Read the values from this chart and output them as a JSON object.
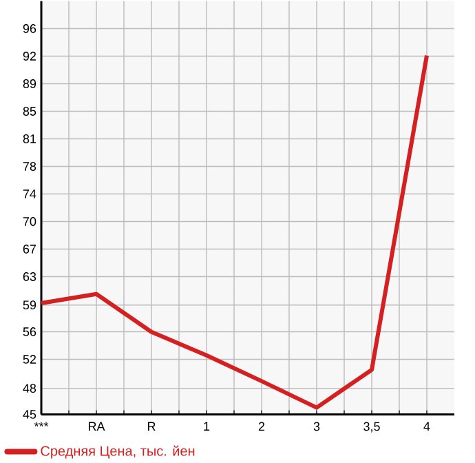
{
  "chart_data": {
    "type": "line",
    "categories": [
      "***",
      "RA",
      "R",
      "1",
      "2",
      "3",
      "3,5",
      "4"
    ],
    "series": [
      {
        "name": "Средняя Цена, тыс. йен",
        "color": "#d42020",
        "values": [
          59.7,
          60.9,
          55.9,
          52.8,
          49.4,
          45.9,
          50.9,
          92.4
        ]
      }
    ],
    "ylim": [
      45,
      99.6
    ],
    "yticks": [
      45,
      {
        "value": 48.45,
        "label": "48"
      },
      {
        "value": 52.28,
        "label": "52"
      },
      {
        "value": 55.92,
        "label": "56"
      },
      {
        "value": 59.45,
        "label": "59"
      },
      {
        "value": 63.2,
        "label": "63"
      },
      {
        "value": 66.84,
        "label": "67"
      },
      {
        "value": 70.48,
        "label": "70"
      },
      {
        "value": 74.12,
        "label": "74"
      },
      {
        "value": 77.76,
        "label": "78"
      },
      {
        "value": 81.4,
        "label": "81"
      },
      {
        "value": 85.04,
        "label": "85"
      },
      {
        "value": 88.68,
        "label": "89"
      },
      {
        "value": 92.32,
        "label": "92"
      },
      {
        "value": 95.96,
        "label": "96"
      }
    ],
    "grid": true,
    "legend": "bottom",
    "marker": "none",
    "line_style": "solid"
  }
}
